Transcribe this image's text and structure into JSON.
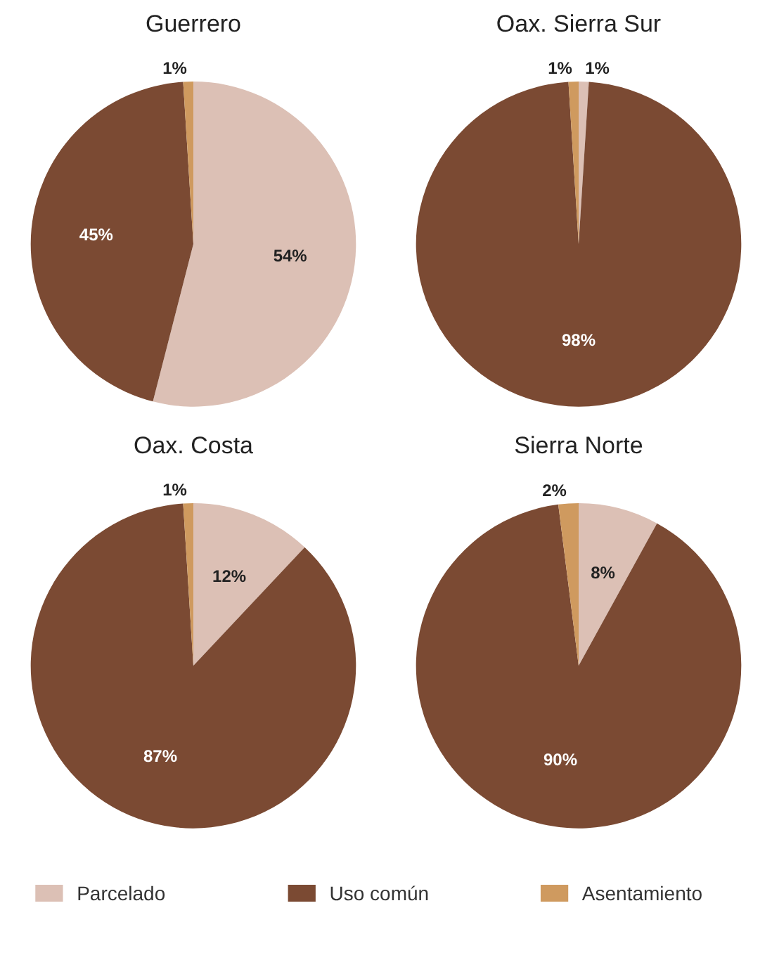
{
  "chart_data": [
    {
      "type": "pie",
      "title": "Guerrero",
      "categories": [
        "Parcelado",
        "Uso común",
        "Asentamiento"
      ],
      "values": [
        54,
        45,
        1
      ],
      "colors": [
        "#dcc0b5",
        "#7b4a33",
        "#cf9a5f"
      ],
      "value_labels": [
        "54%",
        "45%",
        "1%"
      ],
      "legend": "bottom"
    },
    {
      "type": "pie",
      "title": "Oax. Sierra Sur",
      "categories": [
        null,
        null,
        null
      ],
      "values": [
        1,
        98,
        1
      ],
      "colors": [
        "#dcc0b5",
        "#7b4a33",
        "#cf9a5f"
      ],
      "value_labels": [
        "1%",
        "98%",
        "1%"
      ]
    },
    {
      "type": "pie",
      "title": "Oax. Costa",
      "categories": [
        null,
        null,
        null
      ],
      "values": [
        12,
        87,
        1
      ],
      "colors": [
        "#dcc0b5",
        "#7b4a33",
        "#cf9a5f"
      ],
      "value_labels": [
        "12%",
        "87%",
        "1%"
      ]
    },
    {
      "type": "pie",
      "title": "Sierra Norte",
      "categories": [
        null,
        null,
        null
      ],
      "values": [
        8,
        90,
        2
      ],
      "colors": [
        "#dcc0b5",
        "#7b4a33",
        "#cf9a5f"
      ],
      "value_labels": [
        "8%",
        "90%",
        "2%"
      ]
    }
  ]
}
